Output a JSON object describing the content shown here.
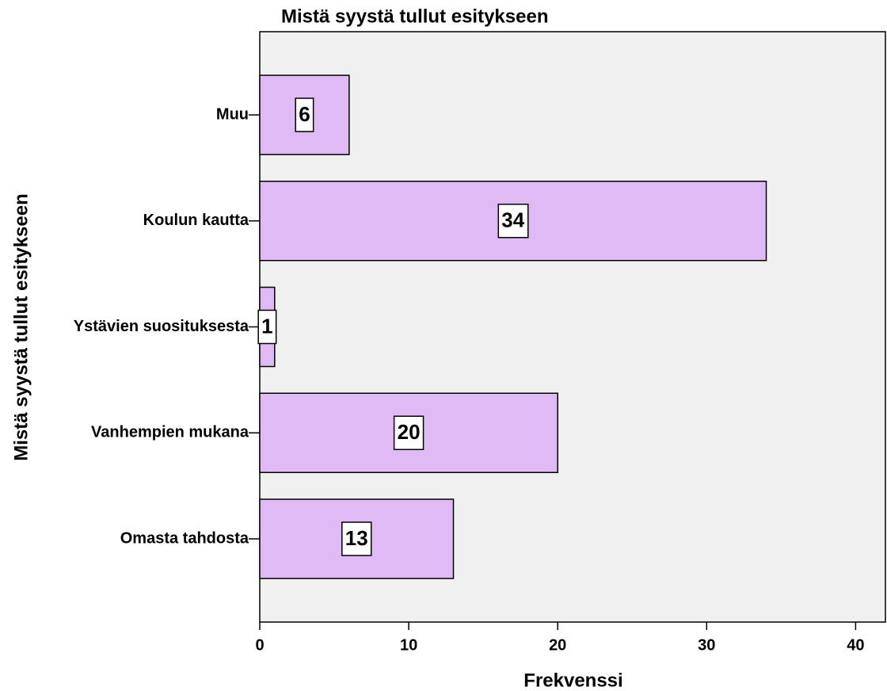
{
  "chart_data": {
    "type": "bar",
    "orientation": "horizontal",
    "title": "Mistä syystä tullut esitykseen",
    "x_label": "Frekvenssi",
    "y_label": "Mistä syystä tullut esitykseen",
    "categories": [
      "Muu",
      "Koulun kautta",
      "Ystävien suosituksesta",
      "Vanhempien mukana",
      "Omasta tahdosta"
    ],
    "values": [
      6,
      34,
      1,
      20,
      13
    ],
    "color": "#dfbaf4",
    "xlim": [
      0,
      42
    ],
    "xticks": [
      0,
      10,
      20,
      30,
      40
    ],
    "grid": false
  }
}
